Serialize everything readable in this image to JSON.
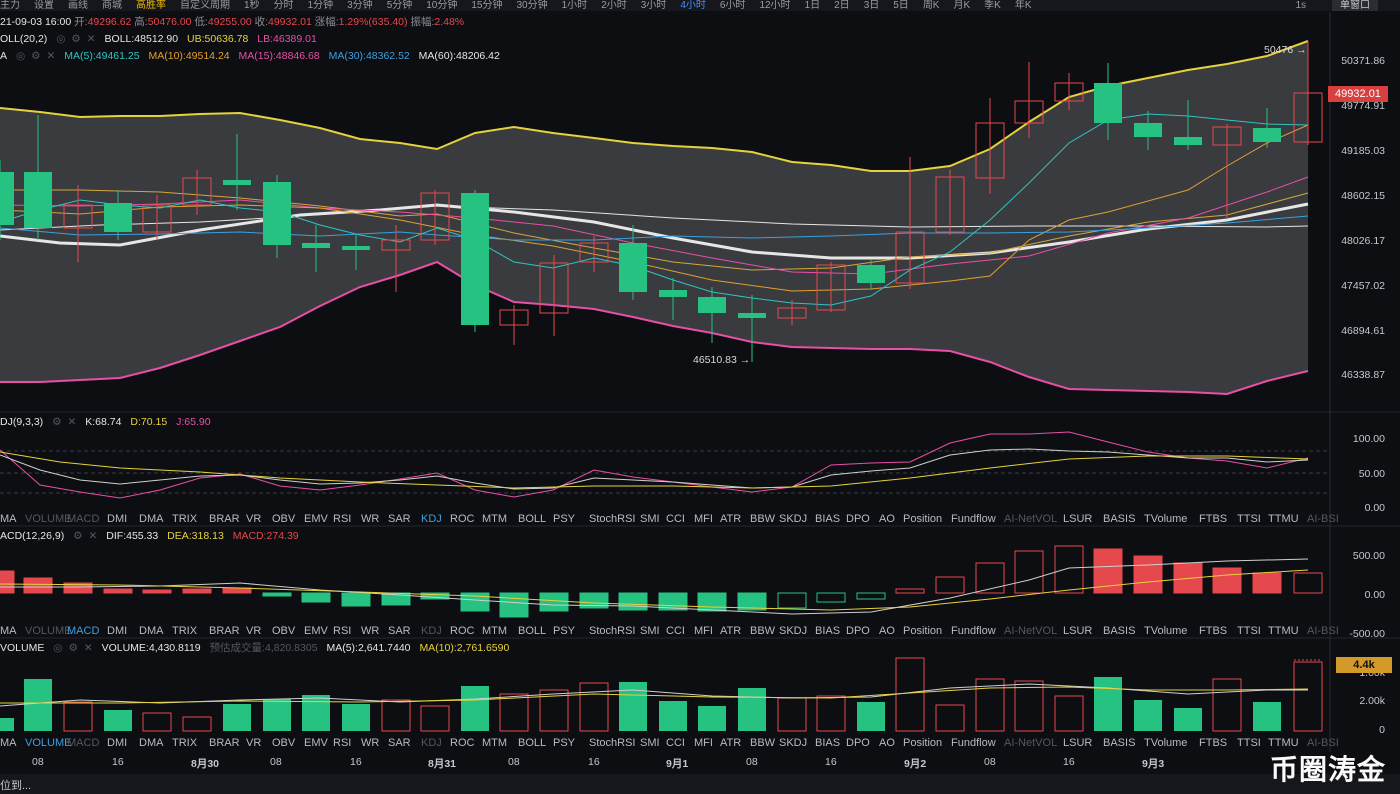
{
  "toolbar": {
    "items": [
      "主力",
      "设置",
      "画线",
      "商城",
      "高胜率",
      "自定义周期",
      "1秒",
      "分时",
      "1分钟",
      "3分钟",
      "5分钟",
      "10分钟",
      "15分钟",
      "30分钟",
      "1小时",
      "2小时",
      "3小时",
      "4小时",
      "6小时",
      "12小时",
      "1日",
      "2日",
      "3日",
      "5日",
      "周K",
      "月K",
      "季K",
      "年K"
    ],
    "active": "4小时",
    "right_label": "1s",
    "right_button": "单窗口"
  },
  "ohlc": {
    "date": "21-09-03 16:00",
    "open_label": "开:",
    "open": "49296.62",
    "high_label": "高:",
    "high": "50476.00",
    "low_label": "低:",
    "low": "49255.00",
    "close_label": "收:",
    "close": "49932.01",
    "change_label": "涨幅:",
    "change": "1.29%(635.40)",
    "amp_label": "振幅:",
    "amp": "2.48%"
  },
  "boll_line": {
    "name": "OLL(20,2)",
    "boll": "BOLL:48512.90",
    "ub": "UB:50636.78",
    "lb": "LB:46389.01"
  },
  "ma_line": {
    "name": "A",
    "ma5": "MA(5):49461.25",
    "ma10": "MA(10):49514.24",
    "ma15": "MA(15):48846.68",
    "ma30": "MA(30):48362.52",
    "ma60": "MA(60):48206.42"
  },
  "price_axis": [
    "50371.86",
    "49774.91",
    "49185.03",
    "48602.15",
    "48026.17",
    "47457.02",
    "46894.61",
    "46338.87"
  ],
  "price_tag": "49932.01",
  "high_marker": "50476 →",
  "low_marker": "46510.83 →",
  "kdj_line": {
    "name": "DJ(9,3,3)",
    "k": "K:68.74",
    "d": "D:70.15",
    "j": "J:65.90"
  },
  "kdj_axis": [
    "100.00",
    "50.00",
    "0.00"
  ],
  "macd_line": {
    "name": "ACD(12,26,9)",
    "dif": "DIF:455.33",
    "dea": "DEA:318.13",
    "macd": "MACD:274.39"
  },
  "macd_axis": [
    "500.00",
    "0.00",
    "-500.00"
  ],
  "vol_line": {
    "name": "VOLUME",
    "volume": "VOLUME:4,430.8119",
    "est": "预估成交量:4,820.8305",
    "ma5": "MA(5):2,641.7440",
    "ma10": "MA(10):2,761.6590"
  },
  "vol_axis": [
    "1.00k",
    "2.00k",
    "0"
  ],
  "vol_tag": "4.4k",
  "indicator_tabs": [
    "MA",
    "VOLUME",
    "MACD",
    "DMI",
    "DMA",
    "TRIX",
    "BRAR",
    "VR",
    "OBV",
    "EMV",
    "RSI",
    "WR",
    "SAR",
    "KDJ",
    "ROC",
    "MTM",
    "BOLL",
    "PSY",
    "StochRSI",
    "SMI",
    "CCI",
    "MFI",
    "ATR",
    "BBW",
    "SKDJ",
    "BIAS",
    "DPO",
    "AO",
    "Position",
    "Fundflow",
    "AI-NetVOL",
    "LSUR",
    "BASIS",
    "TVolume",
    "FTBS",
    "TTSI",
    "TTMU",
    "AI-BSI"
  ],
  "tab_highlight": {
    "row1": "KDJ",
    "row2": "MACD",
    "row3": "VOLUME"
  },
  "x_axis": [
    {
      "label": "08",
      "x": 38
    },
    {
      "label": "16",
      "x": 118
    },
    {
      "label": "8月30",
      "x": 197
    },
    {
      "label": "08",
      "x": 276
    },
    {
      "label": "16",
      "x": 356
    },
    {
      "label": "8月31",
      "x": 434
    },
    {
      "label": "08",
      "x": 514
    },
    {
      "label": "16",
      "x": 594
    },
    {
      "label": "9月1",
      "x": 672
    },
    {
      "label": "08",
      "x": 752
    },
    {
      "label": "16",
      "x": 831
    },
    {
      "label": "9月2",
      "x": 910
    },
    {
      "label": "08",
      "x": 990
    },
    {
      "label": "16",
      "x": 1069
    },
    {
      "label": "9月3",
      "x": 1148
    }
  ],
  "bottom_text": "位到...",
  "watermark": "币圈涛金",
  "colors": {
    "up": "#e5484d",
    "down": "#26c281",
    "bg": "#0d0e12",
    "boll_band": "#e6d23c",
    "boll_low": "#e84fa7"
  }
}
